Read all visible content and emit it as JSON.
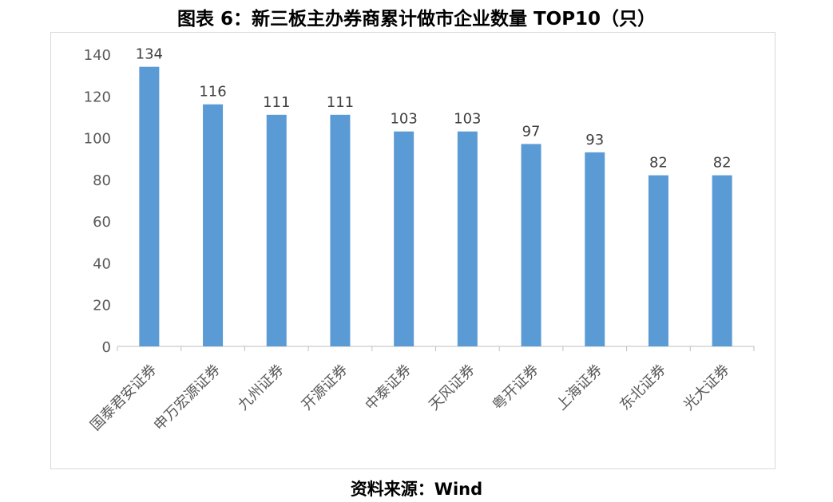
{
  "figure": {
    "title": "图表 6：新三板主办券商累计做市企业数量 TOP10（只）",
    "source": "资料来源：Wind"
  },
  "chart_data": {
    "type": "bar",
    "title": "",
    "xlabel": "",
    "ylabel": "",
    "categories": [
      "国泰君安证券",
      "申万宏源证券",
      "九州证券",
      "开源证券",
      "中泰证券",
      "天风证券",
      "粤开证券",
      "上海证券",
      "东北证券",
      "光大证券"
    ],
    "values": [
      134,
      116,
      111,
      111,
      103,
      103,
      97,
      93,
      82,
      82
    ],
    "ylim": [
      0,
      140
    ],
    "yticks": [
      0,
      20,
      40,
      60,
      80,
      100,
      120,
      140
    ],
    "grid": false,
    "legend": "none",
    "data_labels": true,
    "bar_color": "#5b9bd5",
    "axis_color": "#bfbfbf",
    "text_color": "#595959"
  }
}
